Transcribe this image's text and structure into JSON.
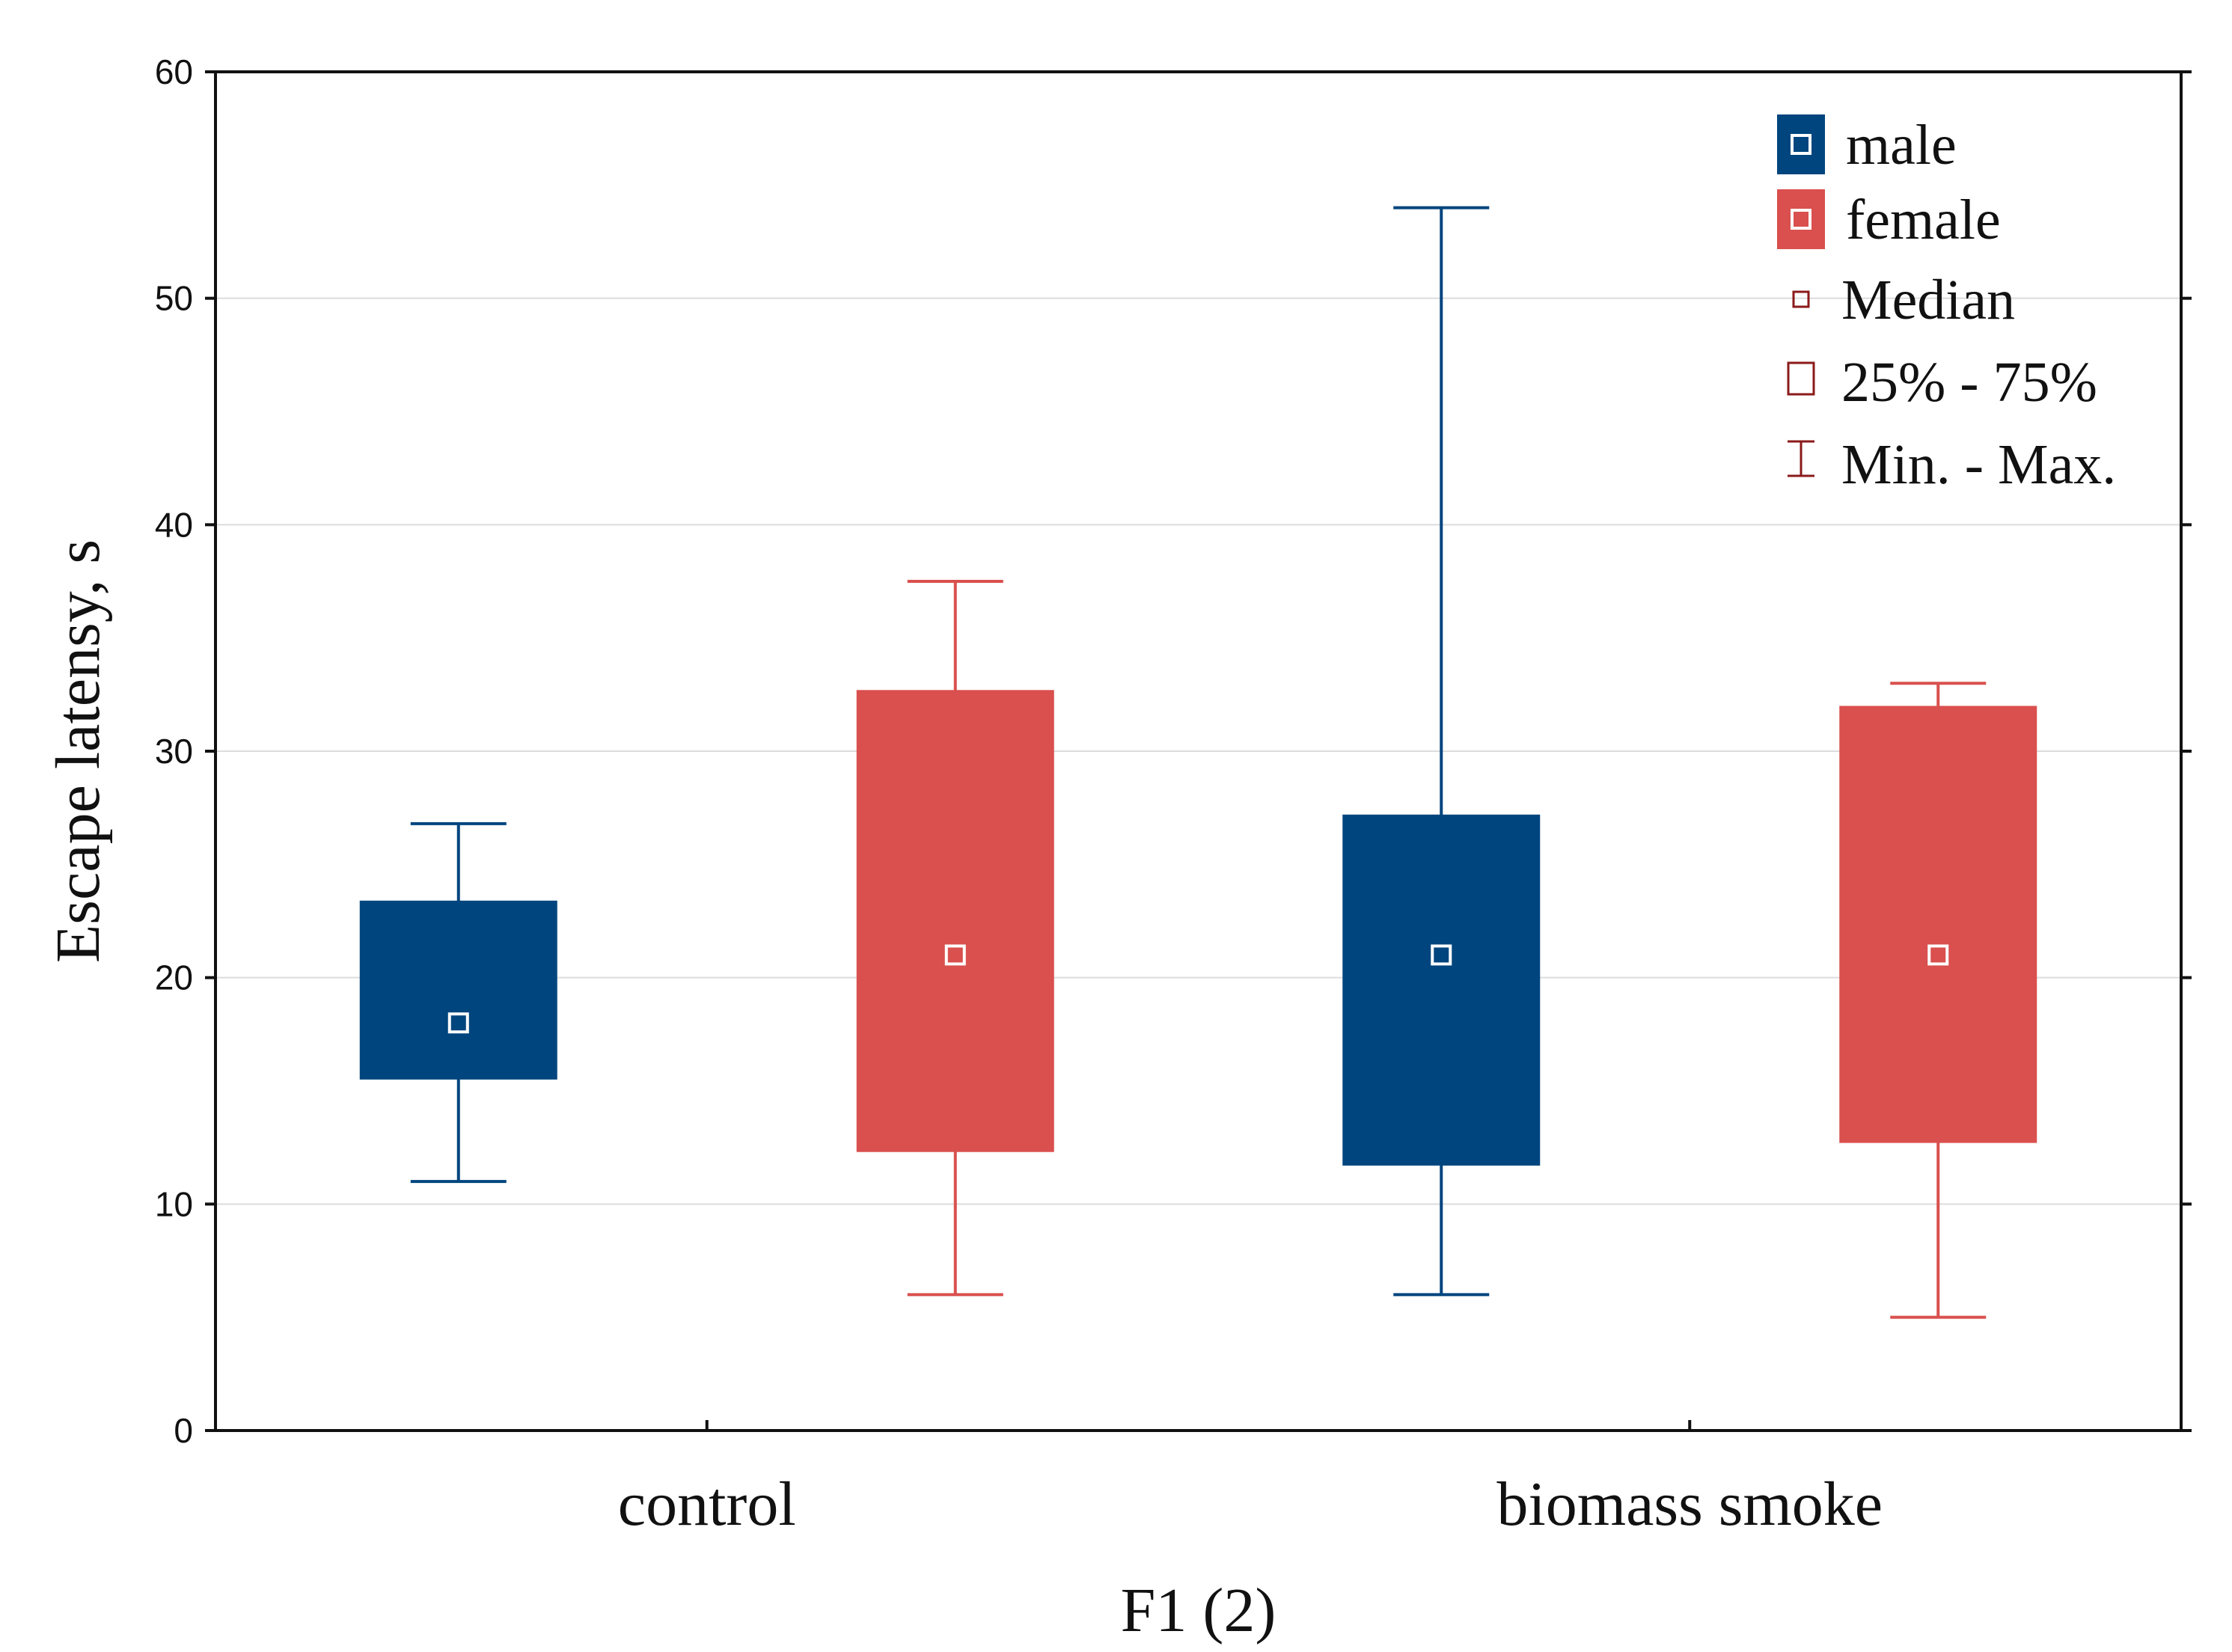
{
  "chart_data": {
    "type": "box",
    "title": "",
    "xlabel": "F1 (2)",
    "ylabel": "Escape latensy, s",
    "ylim": [
      0,
      60
    ],
    "yticks": [
      0,
      10,
      20,
      30,
      40,
      50,
      60
    ],
    "categories": [
      "control",
      "biomass smoke"
    ],
    "grid": true,
    "legend_position": "top-right",
    "series": [
      {
        "name": "male",
        "color": "#00457e",
        "boxes": [
          {
            "min": 11,
            "q1": 15.5,
            "median": 18,
            "q3": 23.4,
            "max": 26.8
          },
          {
            "min": 6,
            "q1": 11.7,
            "median": 21,
            "q3": 27.2,
            "max": 54
          }
        ]
      },
      {
        "name": "female",
        "color": "#d9504e",
        "boxes": [
          {
            "min": 6,
            "q1": 12.3,
            "median": 21,
            "q3": 32.7,
            "max": 37.5
          },
          {
            "min": 5,
            "q1": 12.7,
            "median": 21,
            "q3": 32,
            "max": 33
          }
        ]
      }
    ],
    "legend": {
      "series_entries": [
        "male",
        "female"
      ],
      "key_entries": [
        "Median",
        "25% - 75%",
        "Min. - Max."
      ],
      "key_color": "#8b1a1a"
    }
  }
}
